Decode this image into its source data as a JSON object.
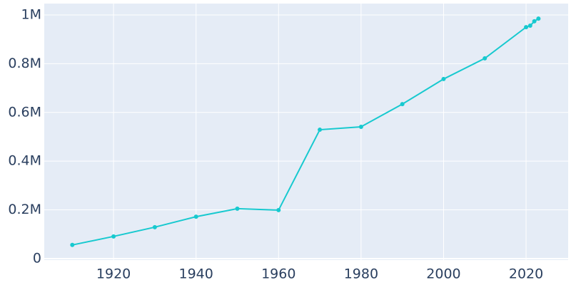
{
  "chart_data": {
    "type": "line",
    "x": [
      1910,
      1920,
      1930,
      1940,
      1950,
      1960,
      1970,
      1980,
      1990,
      2000,
      2010,
      2020,
      2021,
      2022,
      2023
    ],
    "series": [
      {
        "color": "#17c9cf",
        "values": [
          56000,
          91000,
          129000,
          172000,
          205000,
          199000,
          529000,
          541000,
          634000,
          737000,
          822000,
          950000,
          956000,
          974000,
          985000
        ]
      }
    ],
    "xlim": [
      1903.2,
      2030.2
    ],
    "xticks": [
      1920,
      1940,
      1960,
      1980,
      2000,
      2020
    ],
    "ylim": [
      -6000,
      1046800
    ],
    "yticks": [
      0,
      {
        "value": 200000,
        "label": "0.2M"
      },
      {
        "value": 400000,
        "label": "0.4M"
      },
      {
        "value": 600000,
        "label": "0.6M"
      },
      {
        "value": 800000,
        "label": "0.8M"
      },
      {
        "value": 1000000,
        "label": "1M"
      }
    ],
    "grid": true
  }
}
